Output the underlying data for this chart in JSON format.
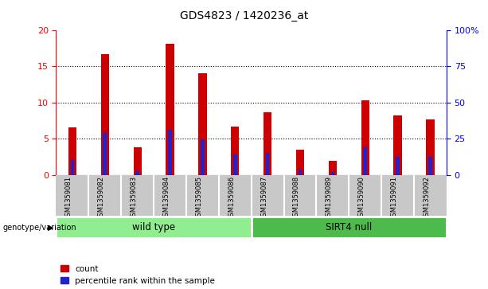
{
  "title": "GDS4823 / 1420236_at",
  "samples": [
    "GSM1359081",
    "GSM1359082",
    "GSM1359083",
    "GSM1359084",
    "GSM1359085",
    "GSM1359086",
    "GSM1359087",
    "GSM1359088",
    "GSM1359089",
    "GSM1359090",
    "GSM1359091",
    "GSM1359092"
  ],
  "count_values": [
    6.6,
    16.7,
    3.8,
    18.1,
    14.1,
    6.7,
    8.7,
    3.5,
    1.9,
    10.3,
    8.2,
    7.7
  ],
  "percentile_values": [
    10.0,
    29.0,
    2.5,
    31.0,
    24.5,
    14.0,
    15.0,
    3.5,
    2.0,
    19.0,
    12.5,
    12.5
  ],
  "ylim_left": [
    0,
    20
  ],
  "ylim_right": [
    0,
    100
  ],
  "yticks_left": [
    0,
    5,
    10,
    15,
    20
  ],
  "yticks_right": [
    0,
    25,
    50,
    75,
    100
  ],
  "ytick_labels_right": [
    "0",
    "25",
    "50",
    "75",
    "100%"
  ],
  "bar_color_count": "#cc0000",
  "bar_color_percentile": "#2222cc",
  "wt_color": "#90EE90",
  "sirt_color": "#4CBB4C",
  "gray_color": "#c8c8c8",
  "legend_count": "count",
  "legend_percentile": "percentile rank within the sample"
}
